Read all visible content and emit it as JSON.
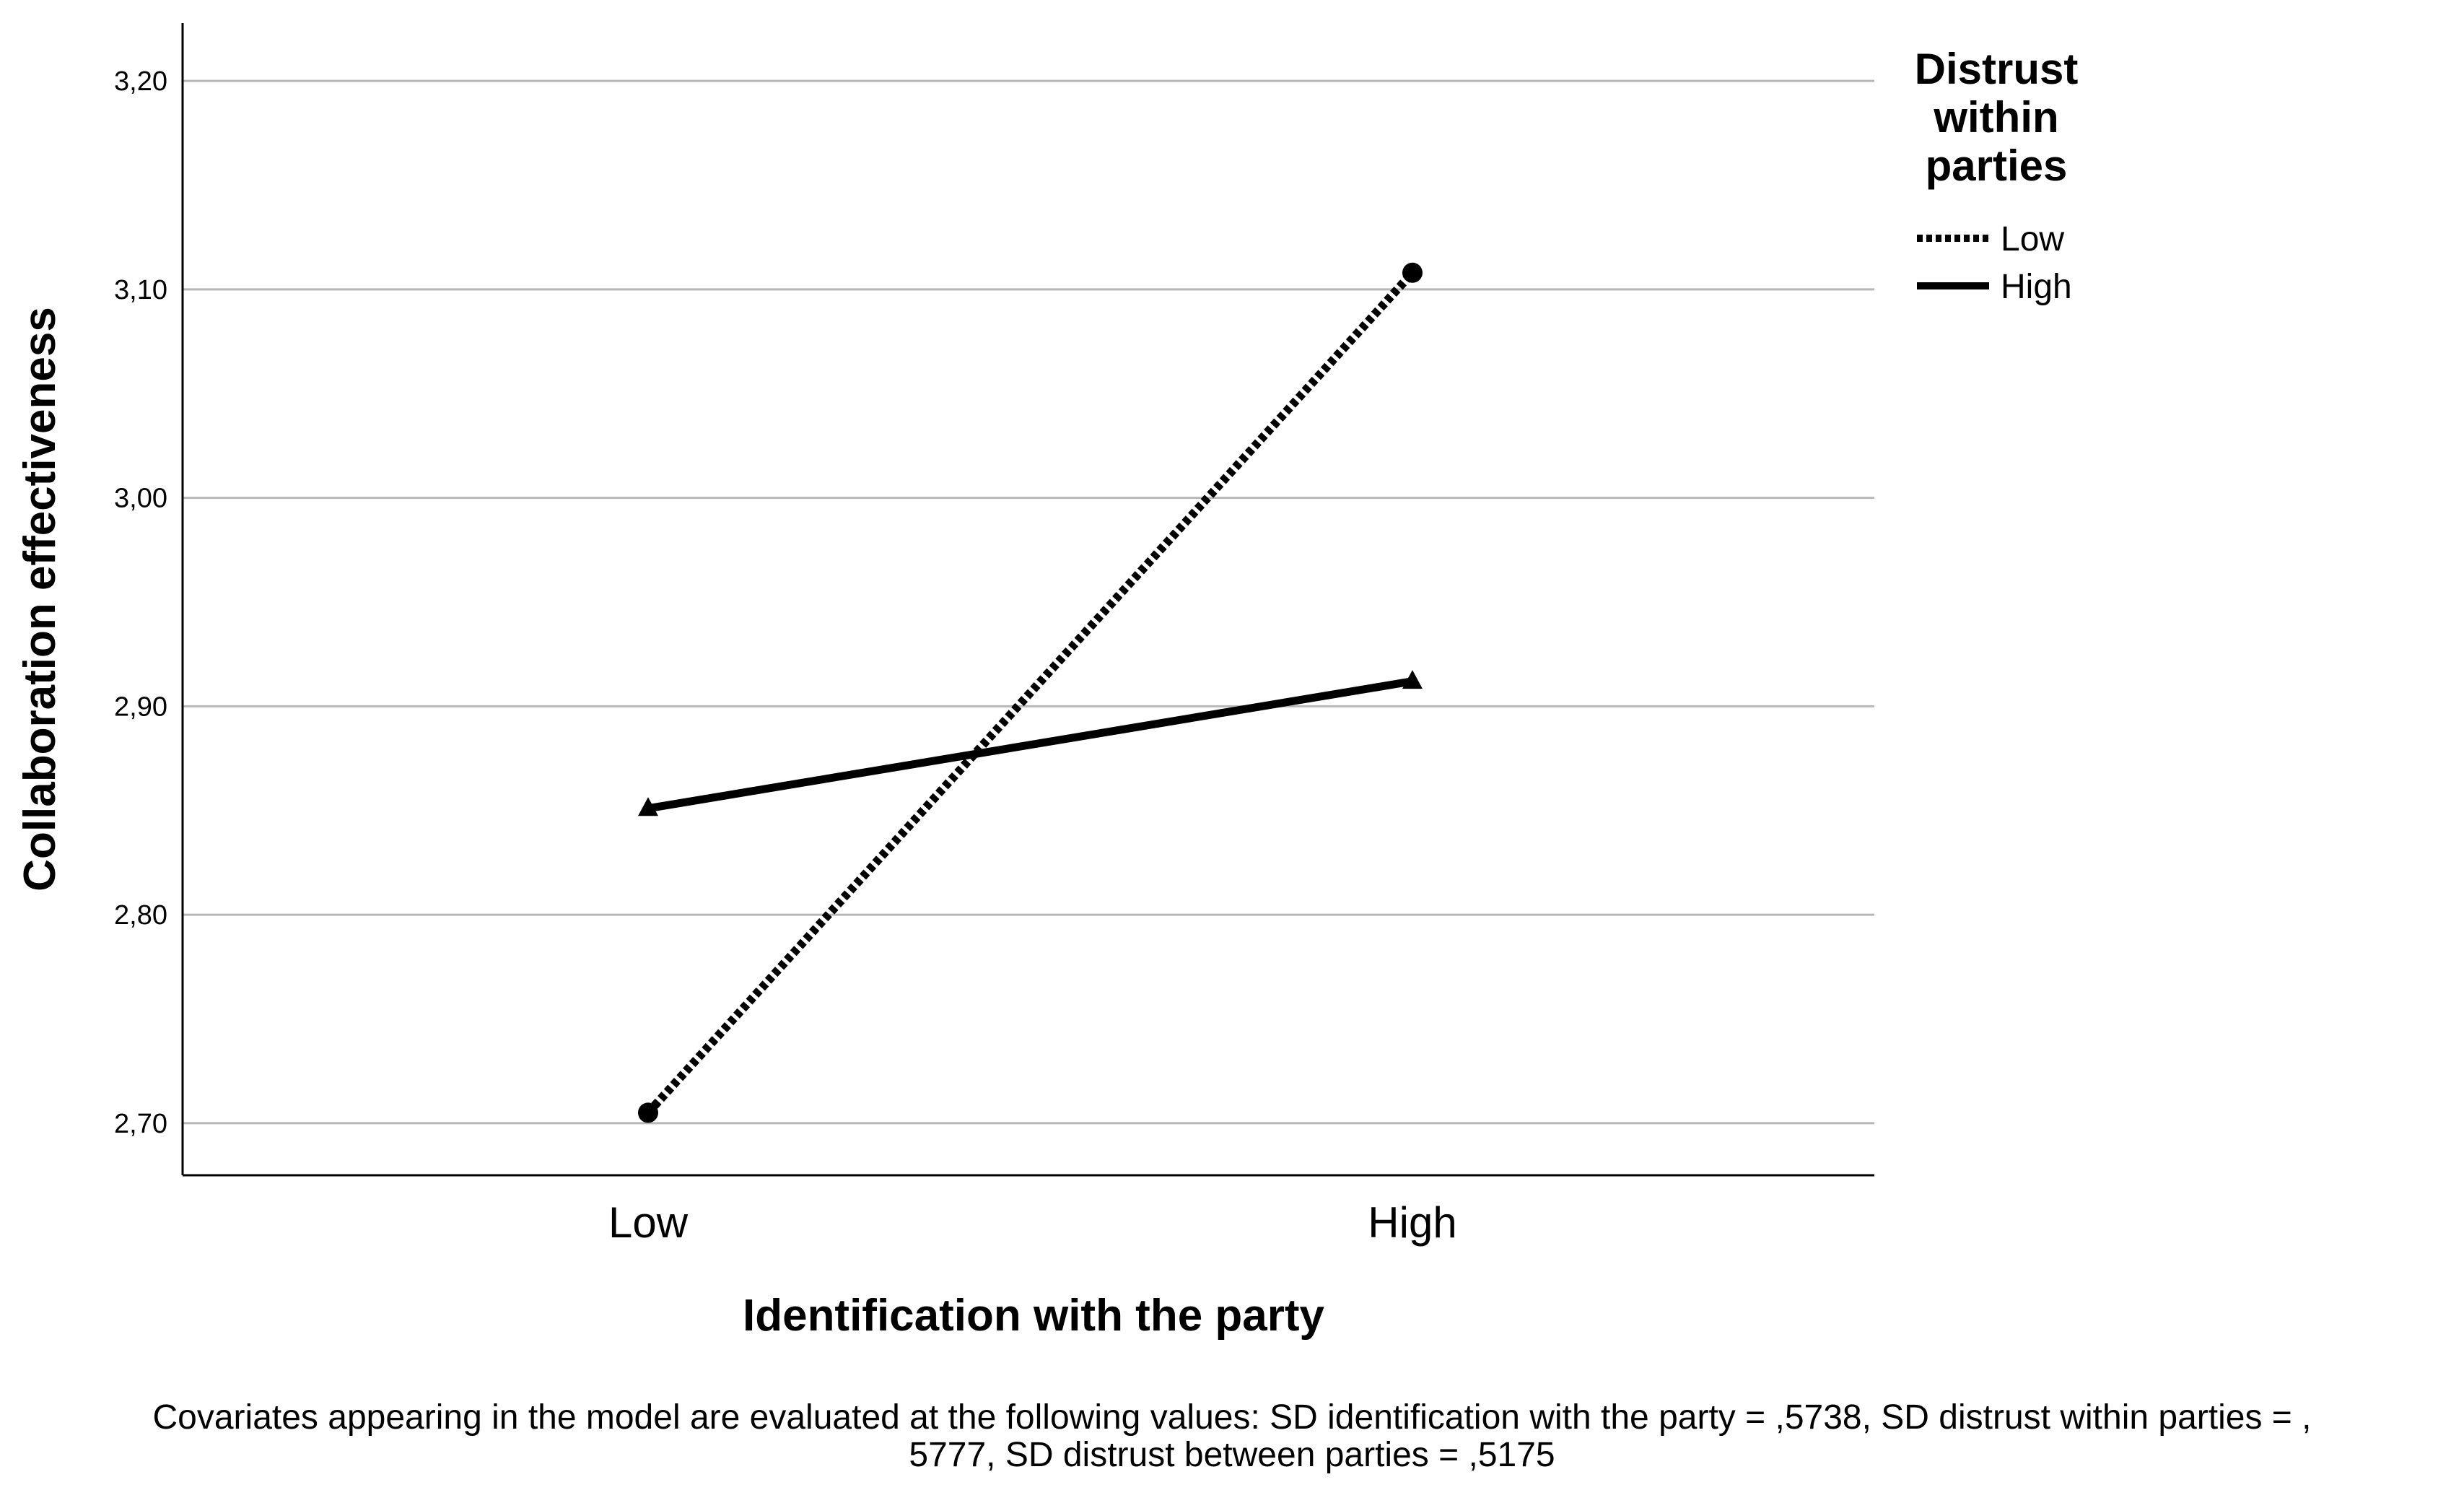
{
  "chart_data": {
    "type": "line",
    "categories": [
      "Low",
      "High"
    ],
    "xlabel": "Identification with the party",
    "ylabel": "Collaboration effectiveness",
    "ylim": [
      2.675,
      3.225
    ],
    "yticks": [
      2.7,
      2.8,
      2.9,
      3.0,
      3.1,
      3.2
    ],
    "ytick_labels": [
      "2,70",
      "2,80",
      "2,90",
      "3,00",
      "3,10",
      "3,20"
    ],
    "grid": "horizontal",
    "legend": {
      "title": [
        "Distrust",
        "within",
        "parties"
      ],
      "placement": "top-right outside"
    },
    "series": [
      {
        "name": "Low",
        "values": [
          2.705,
          3.108
        ],
        "style": "dotted",
        "marker": "circle",
        "color": "#000000"
      },
      {
        "name": "High",
        "values": [
          2.851,
          2.912
        ],
        "style": "solid",
        "marker": "triangle",
        "color": "#000000"
      }
    ]
  },
  "footnote": {
    "line1": "Covariates appearing in the model are evaluated at the following values: SD identification with the party = ,5738, SD distrust within parties = ,",
    "line2": "5777, SD distrust between parties = ,5175"
  },
  "colors": {
    "grid": "#b8b8b8",
    "axis": "#000000",
    "background": "#ffffff"
  }
}
